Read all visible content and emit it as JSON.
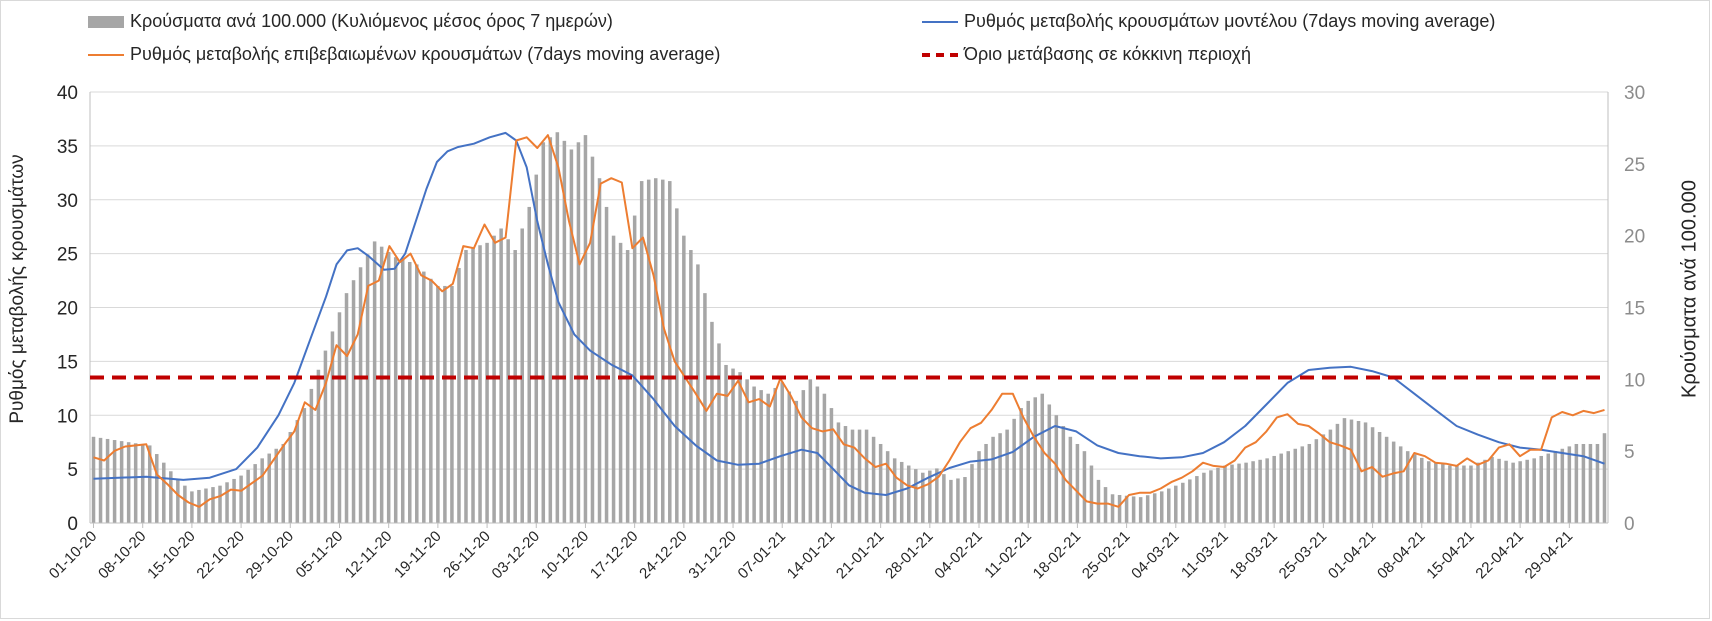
{
  "chart_data": {
    "type": "bar+line",
    "colors": {
      "bars": "#a6a6a6",
      "model_line": "#4472c4",
      "confirmed_line": "#ed7d31",
      "threshold_line": "#c00000",
      "grid": "#d9d9d9",
      "axis_text": "#595959"
    },
    "legend": {
      "bars": "Κρούσματα ανά 100.000 (Κυλιόμενος μέσος όρος 7 ημερών)",
      "model": "Ρυθμός μεταβολής κρουσμάτων μοντέλου (7days moving average)",
      "confirmed": "Ρυθμός μεταβολής επιβεβαιωμένων κρουσμάτων (7days moving average)",
      "threshold": "Όριο μετάβασης σε κόκκινη περιοχή"
    },
    "ylabel_left": "Ρυθμός μεταβολής κρουσμάτων",
    "ylabel_right": "Κρούσματα ανά 100.000",
    "ylim_left": [
      0,
      40
    ],
    "ylim_right": [
      0,
      30
    ],
    "yticks_left": [
      "0",
      "5",
      "10",
      "15",
      "20",
      "25",
      "30",
      "35",
      "40"
    ],
    "yticks_right": [
      "0",
      "5",
      "10",
      "15",
      "20",
      "25",
      "30"
    ],
    "start_date": "01-10-20",
    "num_days": 216,
    "x_tick_labels": [
      "01-10-20",
      "08-10-20",
      "15-10-20",
      "22-10-20",
      "29-10-20",
      "05-11-20",
      "12-11-20",
      "19-11-20",
      "26-11-20",
      "03-12-20",
      "10-12-20",
      "17-12-20",
      "24-12-20",
      "31-12-20",
      "07-01-21",
      "14-01-21",
      "21-01-21",
      "28-01-21",
      "04-02-21",
      "11-02-21",
      "18-02-21",
      "25-02-21",
      "04-03-21",
      "11-03-21",
      "18-03-21",
      "25-03-21",
      "01-04-21",
      "08-04-21",
      "15-04-21",
      "22-04-21",
      "29-04-21"
    ],
    "threshold_value": 13.5,
    "bars_anchor_points": [
      [
        0,
        6
      ],
      [
        8,
        5.4
      ],
      [
        12,
        3
      ],
      [
        14,
        2.2
      ],
      [
        18,
        2.6
      ],
      [
        21,
        3.3
      ],
      [
        24,
        4.5
      ],
      [
        27,
        5.5
      ],
      [
        30,
        8
      ],
      [
        33,
        12
      ],
      [
        36,
        16
      ],
      [
        40,
        19.6
      ],
      [
        43,
        18.5
      ],
      [
        46,
        18
      ],
      [
        49,
        16.5
      ],
      [
        51,
        16.5
      ],
      [
        53,
        19
      ],
      [
        56,
        19.5
      ],
      [
        58,
        20.5
      ],
      [
        60,
        19
      ],
      [
        62,
        22
      ],
      [
        64,
        26.5
      ],
      [
        66,
        27.2
      ],
      [
        68,
        26
      ],
      [
        70,
        27
      ],
      [
        72,
        24
      ],
      [
        74,
        20
      ],
      [
        76,
        19
      ],
      [
        78,
        23.8
      ],
      [
        80,
        24
      ],
      [
        82,
        23.8
      ],
      [
        84,
        20
      ],
      [
        86,
        18
      ],
      [
        88,
        14
      ],
      [
        90,
        11
      ],
      [
        92,
        10.5
      ],
      [
        94,
        9.5
      ],
      [
        96,
        9
      ],
      [
        98,
        9.8
      ],
      [
        100,
        8.5
      ],
      [
        102,
        10
      ],
      [
        104,
        9
      ],
      [
        106,
        7
      ],
      [
        108,
        6.5
      ],
      [
        110,
        6.5
      ],
      [
        112,
        5.5
      ],
      [
        114,
        4.5
      ],
      [
        116,
        4
      ],
      [
        118,
        3.5
      ],
      [
        120,
        3.8
      ],
      [
        122,
        3
      ],
      [
        124,
        3.2
      ],
      [
        126,
        5
      ],
      [
        128,
        6
      ],
      [
        130,
        6.5
      ],
      [
        132,
        8
      ],
      [
        133,
        8.5
      ],
      [
        135,
        9
      ],
      [
        137,
        7.5
      ],
      [
        139,
        6
      ],
      [
        141,
        5
      ],
      [
        143,
        3
      ],
      [
        145,
        2
      ],
      [
        149,
        1.8
      ],
      [
        152,
        2.2
      ],
      [
        155,
        2.8
      ],
      [
        158,
        3.5
      ],
      [
        161,
        4
      ],
      [
        164,
        4.2
      ],
      [
        167,
        4.5
      ],
      [
        170,
        5
      ],
      [
        173,
        5.5
      ],
      [
        176,
        6.5
      ],
      [
        178,
        7.3
      ],
      [
        181,
        7
      ],
      [
        184,
        6
      ],
      [
        187,
        5
      ],
      [
        190,
        4.3
      ],
      [
        193,
        4
      ],
      [
        196,
        4
      ],
      [
        199,
        4.6
      ],
      [
        202,
        4.2
      ],
      [
        205,
        4.5
      ],
      [
        208,
        5
      ],
      [
        211,
        5.5
      ],
      [
        214,
        5.5
      ],
      [
        216,
        7
      ]
    ],
    "model_anchor_points": [
      [
        0,
        4.1
      ],
      [
        10,
        4.3
      ],
      [
        17,
        4
      ],
      [
        22,
        4.2
      ],
      [
        27,
        5
      ],
      [
        31,
        7
      ],
      [
        35,
        10
      ],
      [
        38,
        13
      ],
      [
        41,
        17
      ],
      [
        44,
        21
      ],
      [
        46,
        24
      ],
      [
        48,
        25.3
      ],
      [
        50,
        25.5
      ],
      [
        52,
        24.8
      ],
      [
        55,
        23.5
      ],
      [
        57,
        23.6
      ],
      [
        59,
        25
      ],
      [
        61,
        28
      ],
      [
        63,
        31
      ],
      [
        65,
        33.5
      ],
      [
        67,
        34.5
      ],
      [
        69,
        34.9
      ],
      [
        72,
        35.2
      ],
      [
        75,
        35.8
      ],
      [
        78,
        36.2
      ],
      [
        80,
        35.5
      ],
      [
        82,
        33
      ],
      [
        84,
        28
      ],
      [
        86,
        24
      ],
      [
        88,
        20.5
      ],
      [
        91,
        17.5
      ],
      [
        94,
        16
      ],
      [
        98,
        14.7
      ],
      [
        102,
        13.7
      ],
      [
        106,
        11.5
      ],
      [
        110,
        9
      ],
      [
        114,
        7.2
      ],
      [
        118,
        5.8
      ],
      [
        122,
        5.4
      ],
      [
        126,
        5.5
      ],
      [
        130,
        6.2
      ],
      [
        134,
        6.8
      ],
      [
        137,
        6.5
      ],
      [
        140,
        5
      ],
      [
        143,
        3.5
      ],
      [
        146,
        2.8
      ],
      [
        150,
        2.6
      ],
      [
        154,
        3.2
      ],
      [
        158,
        4.2
      ],
      [
        162,
        5.1
      ],
      [
        166,
        5.7
      ],
      [
        170,
        5.9
      ],
      [
        174,
        6.6
      ],
      [
        178,
        8
      ],
      [
        182,
        9
      ],
      [
        186,
        8.5
      ],
      [
        190,
        7.2
      ],
      [
        194,
        6.5
      ],
      [
        198,
        6.2
      ],
      [
        202,
        6
      ],
      [
        206,
        6.1
      ],
      [
        210,
        6.5
      ],
      [
        214,
        7.5
      ],
      [
        218,
        9
      ],
      [
        222,
        11
      ],
      [
        226,
        13
      ],
      [
        230,
        14.2
      ],
      [
        234,
        14.4
      ],
      [
        238,
        14.5
      ],
      [
        242,
        14.1
      ],
      [
        246,
        13.5
      ],
      [
        250,
        12
      ],
      [
        254,
        10.5
      ],
      [
        258,
        9
      ],
      [
        262,
        8.2
      ],
      [
        266,
        7.5
      ],
      [
        270,
        7
      ],
      [
        274,
        6.8
      ],
      [
        278,
        6.5
      ],
      [
        282,
        6.2
      ],
      [
        286,
        5.5
      ]
    ],
    "confirmed_anchor_points": [
      [
        0,
        6.1
      ],
      [
        2,
        5.8
      ],
      [
        4,
        6.7
      ],
      [
        6,
        7.1
      ],
      [
        8,
        7.2
      ],
      [
        10,
        7.3
      ],
      [
        12,
        4.5
      ],
      [
        14,
        3.6
      ],
      [
        16,
        2.6
      ],
      [
        18,
        1.9
      ],
      [
        20,
        1.5
      ],
      [
        22,
        2.2
      ],
      [
        24,
        2.5
      ],
      [
        26,
        3.1
      ],
      [
        28,
        3
      ],
      [
        30,
        3.7
      ],
      [
        32,
        4.4
      ],
      [
        34,
        5.8
      ],
      [
        36,
        7.2
      ],
      [
        38,
        8.5
      ],
      [
        40,
        11.2
      ],
      [
        42,
        10.5
      ],
      [
        44,
        13
      ],
      [
        46,
        16.5
      ],
      [
        48,
        15.5
      ],
      [
        50,
        17.5
      ],
      [
        52,
        22
      ],
      [
        54,
        22.5
      ],
      [
        56,
        25.7
      ],
      [
        58,
        24.2
      ],
      [
        60,
        25
      ],
      [
        62,
        23
      ],
      [
        64,
        22.5
      ],
      [
        66,
        21.5
      ],
      [
        68,
        22.2
      ],
      [
        70,
        25.7
      ],
      [
        72,
        25.5
      ],
      [
        74,
        27.7
      ],
      [
        76,
        26
      ],
      [
        78,
        26.5
      ],
      [
        80,
        35.5
      ],
      [
        82,
        35.8
      ],
      [
        84,
        34.8
      ],
      [
        86,
        36
      ],
      [
        88,
        33
      ],
      [
        90,
        28
      ],
      [
        92,
        24
      ],
      [
        94,
        26
      ],
      [
        96,
        31.5
      ],
      [
        98,
        32
      ],
      [
        100,
        31.6
      ],
      [
        102,
        25.5
      ],
      [
        104,
        26.5
      ],
      [
        106,
        23
      ],
      [
        108,
        18
      ],
      [
        110,
        15
      ],
      [
        112,
        13.5
      ],
      [
        114,
        12
      ],
      [
        116,
        10.4
      ],
      [
        118,
        12
      ],
      [
        120,
        11.8
      ],
      [
        122,
        13.2
      ],
      [
        124,
        11.2
      ],
      [
        126,
        11.5
      ],
      [
        128,
        10.8
      ],
      [
        130,
        13.4
      ],
      [
        132,
        11.8
      ],
      [
        134,
        9.8
      ],
      [
        136,
        8.8
      ],
      [
        138,
        8.5
      ],
      [
        140,
        8.7
      ],
      [
        142,
        7.3
      ],
      [
        144,
        7
      ],
      [
        146,
        6
      ],
      [
        148,
        5.2
      ],
      [
        150,
        5.5
      ],
      [
        152,
        4.2
      ],
      [
        154,
        3.5
      ],
      [
        156,
        3.2
      ],
      [
        158,
        3.6
      ],
      [
        160,
        4.3
      ],
      [
        162,
        5.8
      ],
      [
        164,
        7.5
      ],
      [
        166,
        8.8
      ],
      [
        168,
        9.3
      ],
      [
        170,
        10.5
      ],
      [
        172,
        12
      ],
      [
        174,
        12
      ],
      [
        176,
        9.8
      ],
      [
        178,
        8
      ],
      [
        180,
        6.5
      ],
      [
        182,
        5.5
      ],
      [
        184,
        4
      ],
      [
        186,
        3
      ],
      [
        188,
        2
      ],
      [
        190,
        1.8
      ],
      [
        192,
        1.8
      ],
      [
        194,
        1.5
      ],
      [
        196,
        2.6
      ],
      [
        198,
        2.8
      ],
      [
        200,
        2.8
      ],
      [
        202,
        3.2
      ],
      [
        204,
        3.8
      ],
      [
        206,
        4.2
      ],
      [
        208,
        4.8
      ],
      [
        210,
        5.6
      ],
      [
        212,
        5.3
      ],
      [
        214,
        5.2
      ],
      [
        216,
        5.8
      ],
      [
        218,
        7
      ],
      [
        220,
        7.5
      ],
      [
        222,
        8.5
      ],
      [
        224,
        9.8
      ],
      [
        226,
        10.1
      ],
      [
        228,
        9.2
      ],
      [
        230,
        9
      ],
      [
        232,
        8.3
      ],
      [
        234,
        7.5
      ],
      [
        236,
        7.2
      ],
      [
        238,
        6.8
      ],
      [
        240,
        4.8
      ],
      [
        242,
        5.2
      ],
      [
        244,
        4.3
      ],
      [
        246,
        4.6
      ],
      [
        248,
        4.8
      ],
      [
        250,
        6.5
      ],
      [
        252,
        6.2
      ],
      [
        254,
        5.6
      ],
      [
        256,
        5.5
      ],
      [
        258,
        5.3
      ],
      [
        260,
        6
      ],
      [
        262,
        5.4
      ],
      [
        264,
        5.8
      ],
      [
        266,
        7
      ],
      [
        268,
        7.3
      ],
      [
        270,
        6.2
      ],
      [
        272,
        6.8
      ],
      [
        274,
        6.8
      ],
      [
        276,
        9.8
      ],
      [
        278,
        10.3
      ],
      [
        280,
        10
      ],
      [
        282,
        10.4
      ],
      [
        284,
        10.2
      ],
      [
        286,
        10.5
      ]
    ]
  }
}
